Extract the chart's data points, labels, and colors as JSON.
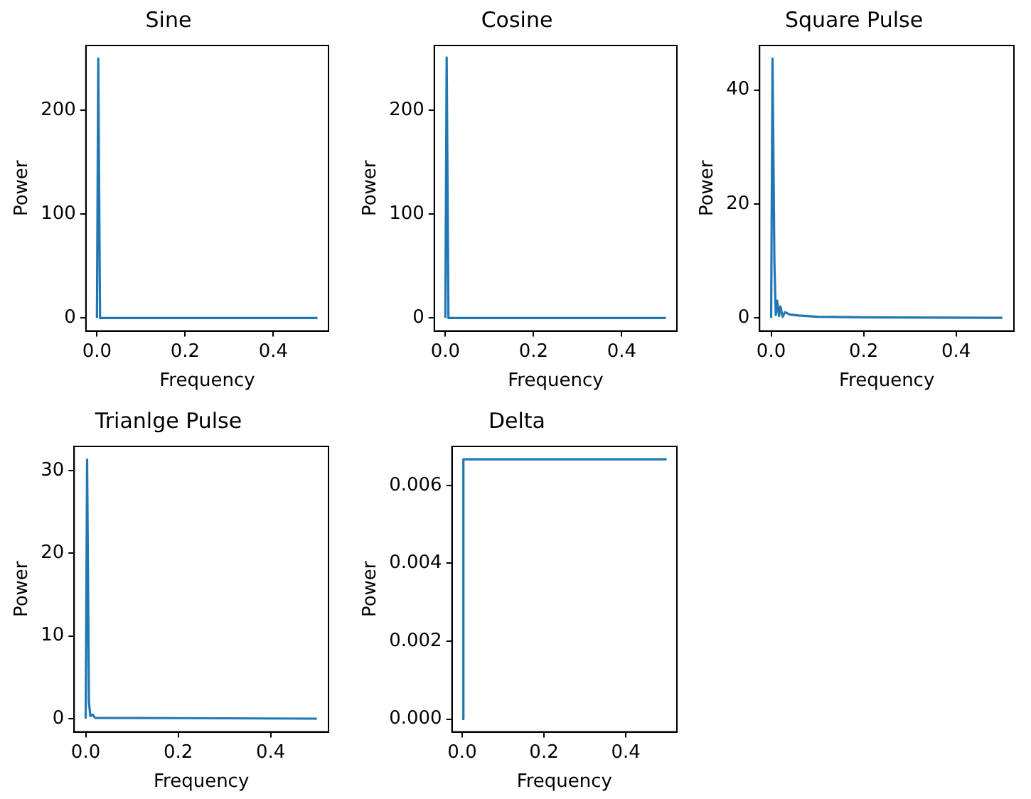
{
  "chart_data": [
    {
      "type": "line",
      "title": "Sine",
      "xlabel": "Frequency",
      "ylabel": "Power",
      "marker": "none",
      "xlim": [
        -0.025,
        0.525
      ],
      "xticks": [
        {
          "value": 0,
          "label": "0.0"
        },
        {
          "value": 0.2,
          "label": "0.2"
        },
        {
          "value": 0.4,
          "label": "0.4"
        }
      ],
      "ylim": [
        -12.5,
        262.5
      ],
      "yticks": [
        0,
        100,
        200
      ],
      "series": [
        {
          "color": "#1f77b4",
          "x": [
            0,
            0.003,
            0.007,
            0.5
          ],
          "values": [
            0,
            250,
            0,
            0
          ]
        }
      ]
    },
    {
      "type": "line",
      "title": "Cosine",
      "xlabel": "Frequency",
      "ylabel": "Power",
      "marker": "none",
      "xlim": [
        -0.025,
        0.525
      ],
      "xticks": [
        {
          "value": 0,
          "label": "0.0"
        },
        {
          "value": 0.2,
          "label": "0.2"
        },
        {
          "value": 0.4,
          "label": "0.4"
        }
      ],
      "ylim": [
        -12.5,
        262.5
      ],
      "yticks": [
        0,
        100,
        200
      ],
      "series": [
        {
          "color": "#1f77b4",
          "x": [
            0,
            0.003,
            0.007,
            0.5
          ],
          "values": [
            0,
            251,
            0,
            0
          ]
        }
      ]
    },
    {
      "type": "line",
      "title": "Square Pulse",
      "xlabel": "Frequency",
      "ylabel": "Power",
      "marker": "none",
      "xlim": [
        -0.025,
        0.525
      ],
      "xticks": [
        {
          "value": 0,
          "label": "0.0"
        },
        {
          "value": 0.2,
          "label": "0.2"
        },
        {
          "value": 0.4,
          "label": "0.4"
        }
      ],
      "ylim": [
        -2.3,
        47.8
      ],
      "yticks": [
        0,
        20,
        40
      ],
      "series": [
        {
          "color": "#1f77b4",
          "x": [
            0,
            0.003,
            0.007,
            0.01,
            0.013,
            0.017,
            0.02,
            0.025,
            0.03,
            0.04,
            0.06,
            0.1,
            0.2,
            0.5
          ],
          "values": [
            0,
            45.5,
            10,
            0.5,
            3,
            0.3,
            2,
            0.2,
            1,
            0.6,
            0.4,
            0.2,
            0.1,
            0
          ]
        }
      ]
    },
    {
      "type": "line",
      "title": "Trianlge Pulse",
      "xlabel": "Frequency",
      "ylabel": "Power",
      "marker": "none",
      "xlim": [
        -0.025,
        0.525
      ],
      "xticks": [
        {
          "value": 0,
          "label": "0.0"
        },
        {
          "value": 0.2,
          "label": "0.2"
        },
        {
          "value": 0.4,
          "label": "0.4"
        }
      ],
      "ylim": [
        -1.6,
        32.9
      ],
      "yticks": [
        0,
        10,
        20,
        30
      ],
      "series": [
        {
          "color": "#1f77b4",
          "x": [
            0,
            0.003,
            0.007,
            0.01,
            0.015,
            0.02,
            0.5
          ],
          "values": [
            0,
            31.3,
            2,
            0.3,
            0.5,
            0.1,
            0
          ]
        }
      ]
    },
    {
      "type": "line",
      "title": "Delta",
      "xlabel": "Frequency",
      "ylabel": "Power",
      "marker": "none",
      "xlim": [
        -0.025,
        0.525
      ],
      "xticks": [
        {
          "value": 0,
          "label": "0.0"
        },
        {
          "value": 0.2,
          "label": "0.2"
        },
        {
          "value": 0.4,
          "label": "0.4"
        }
      ],
      "ylim": [
        -0.00033,
        0.007
      ],
      "yticks": [
        {
          "value": 0,
          "label": "0.000"
        },
        {
          "value": 0.002,
          "label": "0.002"
        },
        {
          "value": 0.004,
          "label": "0.004"
        },
        {
          "value": 0.006,
          "label": "0.006"
        }
      ],
      "series": [
        {
          "color": "#1f77b4",
          "x": [
            0,
            0.003,
            0.5
          ],
          "values": [
            0,
            0.00667,
            0.00667
          ]
        }
      ]
    }
  ]
}
